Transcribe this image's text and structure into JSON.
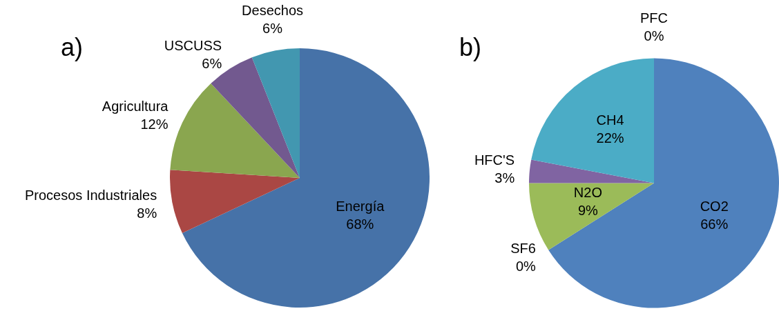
{
  "chart_data": [
    {
      "type": "pie",
      "title": "a)",
      "categories": [
        "Energía",
        "Procesos Industriales",
        "Agricultura",
        "USCUSS",
        "Desechos"
      ],
      "values": [
        68,
        8,
        12,
        6,
        6
      ],
      "value_labels": [
        "68%",
        "8%",
        "12%",
        "6%",
        "6%"
      ],
      "colors": [
        "#4672a8",
        "#aa4744",
        "#8aa64f",
        "#72598f",
        "#4297b0"
      ],
      "legend": false
    },
    {
      "type": "pie",
      "title": "b)",
      "categories": [
        "CO2",
        "SF6",
        "N2O",
        "HFC'S",
        "CH4",
        "PFC"
      ],
      "values": [
        66,
        0,
        9,
        3,
        22,
        0
      ],
      "value_labels": [
        "66%",
        "0%",
        "9%",
        "3%",
        "22%",
        "0%"
      ],
      "colors": [
        "#4f81bd",
        "#c0504d",
        "#9bbb59",
        "#8064a2",
        "#4bacc6",
        "#f79646"
      ],
      "legend": false
    }
  ]
}
